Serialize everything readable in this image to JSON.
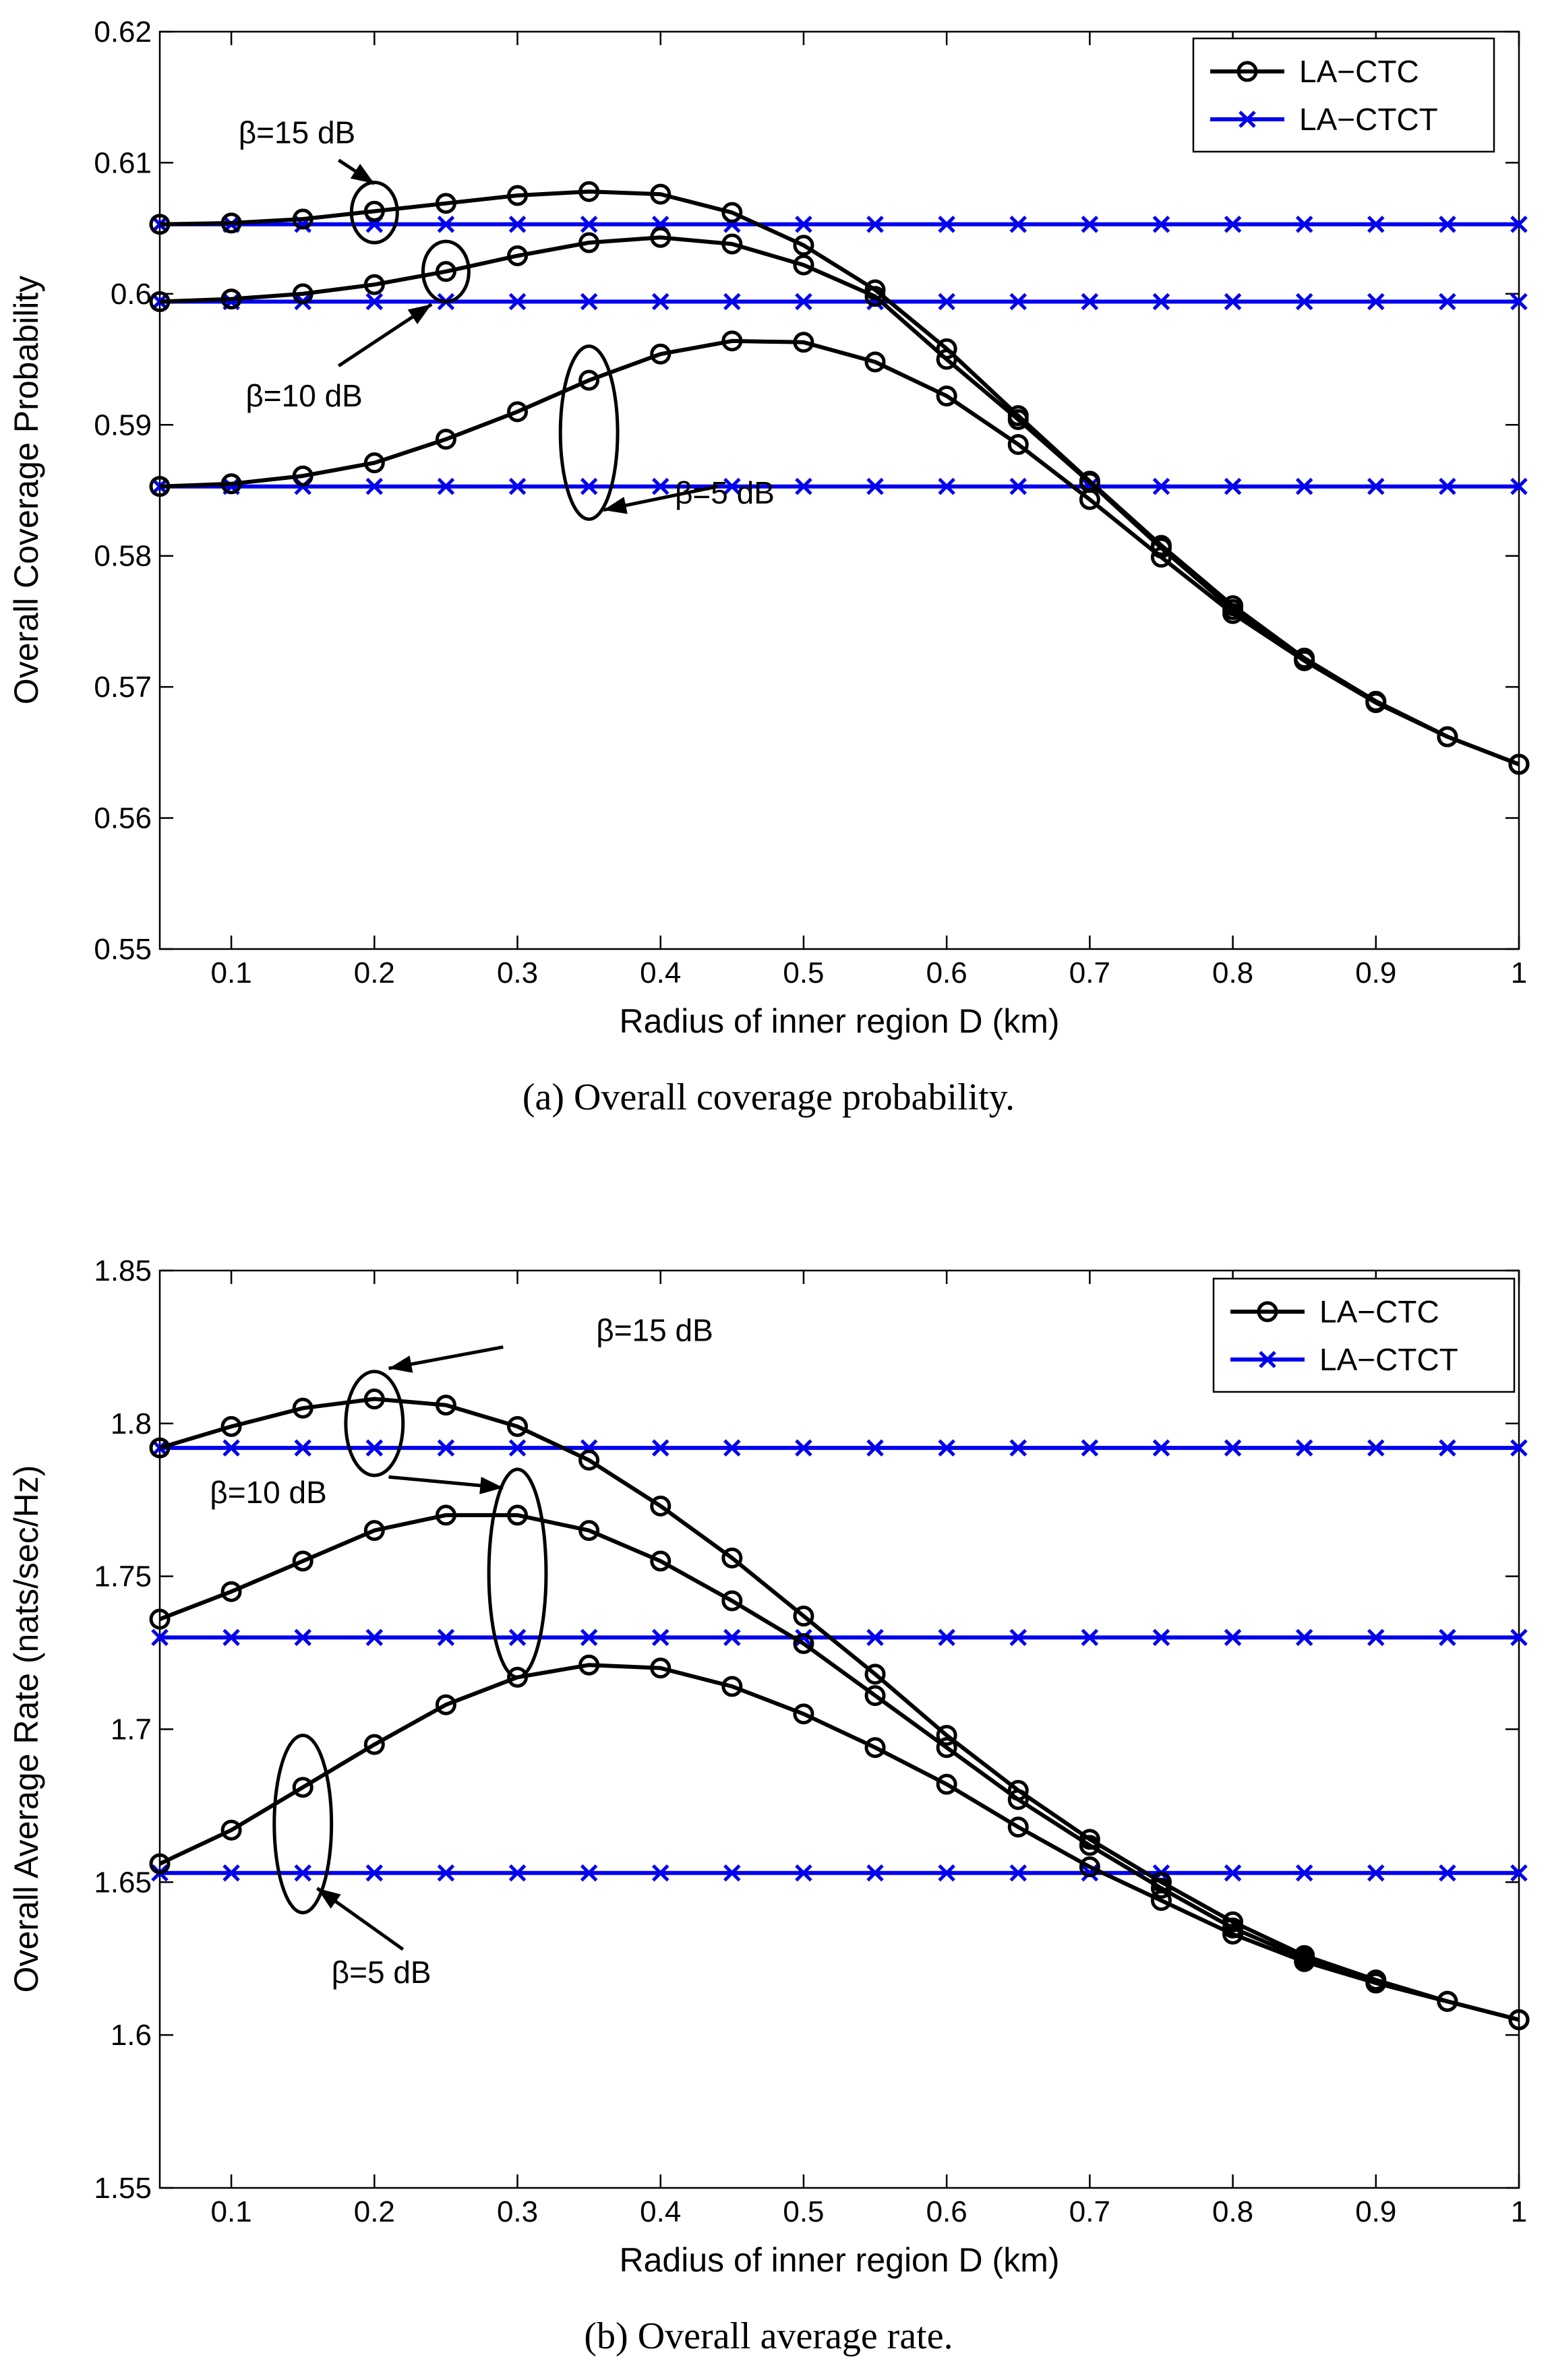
{
  "chart_data": [
    {
      "type": "line",
      "caption": "(a)  Overall coverage probability.",
      "xlabel": "Radius of inner region D (km)",
      "ylabel": "Overall Coverage Probability",
      "xlim": [
        0.05,
        1
      ],
      "ylim": [
        0.55,
        0.62
      ],
      "xticks": [
        "0.1",
        "0.2",
        "0.3",
        "0.4",
        "0.5",
        "0.6",
        "0.7",
        "0.8",
        "0.9",
        "1"
      ],
      "yticks": [
        "0.55",
        "0.56",
        "0.57",
        "0.58",
        "0.59",
        "0.6",
        "0.61",
        "0.62"
      ],
      "legend": {
        "position": "top-right",
        "entries": [
          "LA−CTC",
          "LA−CTCT"
        ]
      },
      "colors": {
        "ctc": "#000000",
        "ctct": "#0000ee"
      },
      "x": [
        0.05,
        0.1,
        0.15,
        0.2,
        0.25,
        0.3,
        0.35,
        0.4,
        0.45,
        0.5,
        0.55,
        0.6,
        0.65,
        0.7,
        0.75,
        0.8,
        0.85,
        0.9,
        0.95,
        1.0
      ],
      "series": [
        {
          "name": "LA-CTC β=15 dB",
          "kind": "ctc",
          "values": [
            0.6053,
            0.6054,
            0.6057,
            0.6063,
            0.6069,
            0.6075,
            0.6078,
            0.6076,
            0.6062,
            0.6037,
            0.6003,
            0.5958,
            0.5907,
            0.5857,
            0.5808,
            0.5762,
            0.5722,
            0.5689,
            0.5662,
            0.5641
          ]
        },
        {
          "name": "LA-CTC β=10 dB",
          "kind": "ctc",
          "values": [
            0.5994,
            0.5996,
            0.6,
            0.6007,
            0.6017,
            0.6029,
            0.6039,
            0.6043,
            0.6038,
            0.6022,
            0.5998,
            0.595,
            0.5904,
            0.5856,
            0.5806,
            0.5759,
            0.5721,
            0.5689,
            0.5662,
            0.5641
          ]
        },
        {
          "name": "LA-CTC β=5 dB",
          "kind": "ctc",
          "values": [
            0.5853,
            0.5855,
            0.5861,
            0.5871,
            0.5889,
            0.591,
            0.5934,
            0.5954,
            0.5964,
            0.5963,
            0.5948,
            0.5922,
            0.5885,
            0.5843,
            0.5799,
            0.5756,
            0.572,
            0.5688,
            0.5662,
            0.5641
          ]
        },
        {
          "name": "LA-CTCT β=15 dB",
          "kind": "ctct",
          "values": [
            0.6053,
            0.6053,
            0.6053,
            0.6053,
            0.6053,
            0.6053,
            0.6053,
            0.6053,
            0.6053,
            0.6053,
            0.6053,
            0.6053,
            0.6053,
            0.6053,
            0.6053,
            0.6053,
            0.6053,
            0.6053,
            0.6053,
            0.6053
          ]
        },
        {
          "name": "LA-CTCT β=10 dB",
          "kind": "ctct",
          "values": [
            0.5994,
            0.5994,
            0.5994,
            0.5994,
            0.5994,
            0.5994,
            0.5994,
            0.5994,
            0.5994,
            0.5994,
            0.5994,
            0.5994,
            0.5994,
            0.5994,
            0.5994,
            0.5994,
            0.5994,
            0.5994,
            0.5994,
            0.5994
          ]
        },
        {
          "name": "LA-CTCT β=5 dB",
          "kind": "ctct",
          "values": [
            0.5853,
            0.5853,
            0.5853,
            0.5853,
            0.5853,
            0.5853,
            0.5853,
            0.5853,
            0.5853,
            0.5853,
            0.5853,
            0.5853,
            0.5853,
            0.5853,
            0.5853,
            0.5853,
            0.5853,
            0.5853,
            0.5853,
            0.5853
          ]
        }
      ],
      "annotations": [
        {
          "text": "β=15 dB",
          "ellipse_center": [
            0.2,
            0.6062
          ],
          "ellipse_radius": [
            0.016,
            0.0023
          ],
          "label_at": [
            0.105,
            0.6115
          ],
          "arrow_from": [
            0.175,
            0.6102
          ],
          "arrow_to": [
            0.2,
            0.6084
          ]
        },
        {
          "text": "β=10 dB",
          "ellipse_center": [
            0.25,
            0.6017
          ],
          "ellipse_radius": [
            0.016,
            0.0023
          ],
          "label_at": [
            0.11,
            0.5914
          ],
          "arrow_from": [
            0.175,
            0.5945
          ],
          "arrow_to": [
            0.24,
            0.5992
          ]
        },
        {
          "text": "β=5 dB",
          "ellipse_center": [
            0.35,
            0.5894
          ],
          "ellipse_radius": [
            0.02,
            0.0066
          ],
          "label_at": [
            0.41,
            0.584
          ],
          "arrow_from": [
            0.44,
            0.5853
          ],
          "arrow_to": [
            0.36,
            0.5835
          ]
        }
      ]
    },
    {
      "type": "line",
      "caption": "(b)  Overall average rate.",
      "xlabel": "Radius of inner region D (km)",
      "ylabel": "Overall Average Rate (nats/sec/Hz)",
      "xlim": [
        0.05,
        1
      ],
      "ylim": [
        1.55,
        1.85
      ],
      "xticks": [
        "0.1",
        "0.2",
        "0.3",
        "0.4",
        "0.5",
        "0.6",
        "0.7",
        "0.8",
        "0.9",
        "1"
      ],
      "yticks": [
        "1.55",
        "1.6",
        "1.65",
        "1.7",
        "1.75",
        "1.8",
        "1.85"
      ],
      "legend": {
        "position": "top-right",
        "entries": [
          "LA−CTC",
          "LA−CTCT"
        ]
      },
      "colors": {
        "ctc": "#000000",
        "ctct": "#0000ee"
      },
      "x": [
        0.05,
        0.1,
        0.15,
        0.2,
        0.25,
        0.3,
        0.35,
        0.4,
        0.45,
        0.5,
        0.55,
        0.6,
        0.65,
        0.7,
        0.75,
        0.8,
        0.85,
        0.9,
        0.95,
        1.0
      ],
      "series": [
        {
          "name": "LA-CTC β=15 dB",
          "kind": "ctc",
          "values": [
            1.792,
            1.799,
            1.805,
            1.808,
            1.806,
            1.799,
            1.788,
            1.773,
            1.756,
            1.737,
            1.718,
            1.698,
            1.68,
            1.664,
            1.65,
            1.637,
            1.626,
            1.618,
            1.611,
            1.605
          ]
        },
        {
          "name": "LA-CTC β=10 dB",
          "kind": "ctc",
          "values": [
            1.736,
            1.745,
            1.755,
            1.765,
            1.77,
            1.77,
            1.765,
            1.755,
            1.742,
            1.728,
            1.711,
            1.694,
            1.677,
            1.662,
            1.648,
            1.635,
            1.625,
            1.617,
            1.611,
            1.605
          ]
        },
        {
          "name": "LA-CTC β=5 dB",
          "kind": "ctc",
          "values": [
            1.656,
            1.667,
            1.681,
            1.695,
            1.708,
            1.717,
            1.721,
            1.72,
            1.714,
            1.705,
            1.694,
            1.682,
            1.668,
            1.655,
            1.644,
            1.633,
            1.624,
            1.617,
            1.611,
            1.605
          ]
        },
        {
          "name": "LA-CTCT β=15 dB",
          "kind": "ctct",
          "values": [
            1.792,
            1.792,
            1.792,
            1.792,
            1.792,
            1.792,
            1.792,
            1.792,
            1.792,
            1.792,
            1.792,
            1.792,
            1.792,
            1.792,
            1.792,
            1.792,
            1.792,
            1.792,
            1.792,
            1.792
          ]
        },
        {
          "name": "LA-CTCT β=10 dB",
          "kind": "ctct",
          "values": [
            1.73,
            1.73,
            1.73,
            1.73,
            1.73,
            1.73,
            1.73,
            1.73,
            1.73,
            1.73,
            1.73,
            1.73,
            1.73,
            1.73,
            1.73,
            1.73,
            1.73,
            1.73,
            1.73,
            1.73
          ]
        },
        {
          "name": "LA-CTCT β=5 dB",
          "kind": "ctct",
          "values": [
            1.653,
            1.653,
            1.653,
            1.653,
            1.653,
            1.653,
            1.653,
            1.653,
            1.653,
            1.653,
            1.653,
            1.653,
            1.653,
            1.653,
            1.653,
            1.653,
            1.653,
            1.653,
            1.653,
            1.653
          ]
        }
      ],
      "annotations": [
        {
          "text": "β=15 dB",
          "ellipse_center": [
            0.2,
            1.8
          ],
          "ellipse_radius": [
            0.02,
            0.017
          ],
          "label_at": [
            0.355,
            1.827
          ],
          "arrow_from": [
            0.29,
            1.825
          ],
          "arrow_to": [
            0.21,
            1.818
          ]
        },
        {
          "text": "β=10 dB",
          "ellipse_center": [
            0.3,
            1.751
          ],
          "ellipse_radius": [
            0.02,
            0.034
          ],
          "label_at": [
            0.085,
            1.774
          ],
          "arrow_from": [
            0.21,
            1.7825
          ],
          "arrow_to": [
            0.29,
            1.779
          ]
        },
        {
          "text": "β=5 dB",
          "ellipse_center": [
            0.15,
            1.669
          ],
          "ellipse_radius": [
            0.02,
            0.029
          ],
          "label_at": [
            0.17,
            1.617
          ],
          "arrow_from": [
            0.22,
            1.628
          ],
          "arrow_to": [
            0.16,
            1.648
          ]
        }
      ]
    }
  ]
}
